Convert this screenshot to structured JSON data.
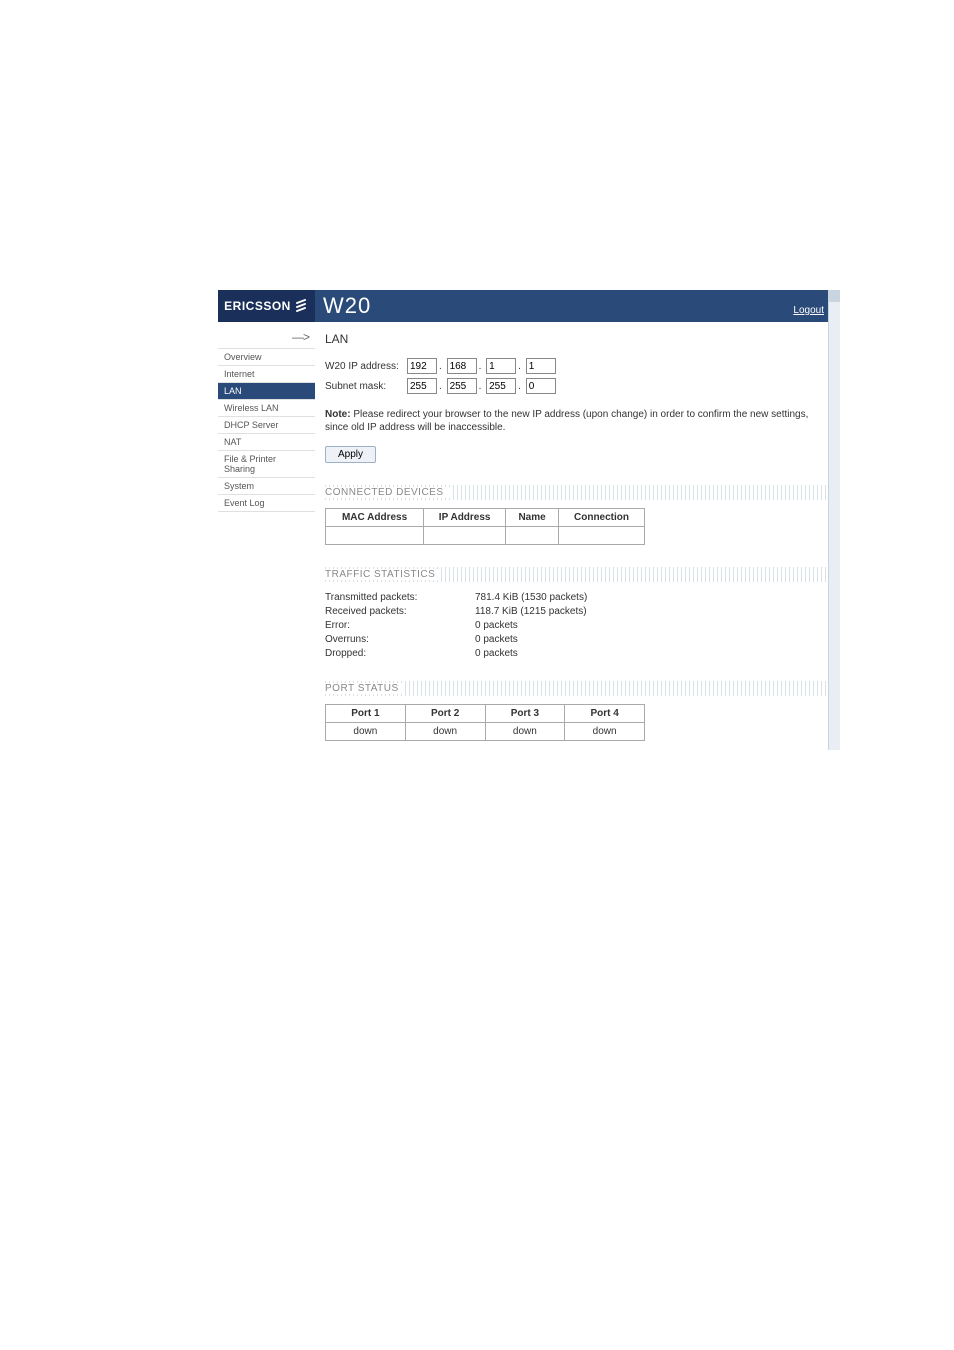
{
  "brand": "ERICSSON",
  "product_title": "W20",
  "logout": "Logout",
  "arrow": "—>",
  "nav": [
    {
      "label": "Overview",
      "active": false
    },
    {
      "label": "Internet",
      "active": false
    },
    {
      "label": "LAN",
      "active": true
    },
    {
      "label": "Wireless LAN",
      "active": false
    },
    {
      "label": "DHCP Server",
      "active": false
    },
    {
      "label": "NAT",
      "active": false
    },
    {
      "label": "File & Printer Sharing",
      "active": false
    },
    {
      "label": "System",
      "active": false
    },
    {
      "label": "Event Log",
      "active": false
    }
  ],
  "page_heading": "LAN",
  "ip_field": {
    "label": "W20 IP address:",
    "o1": "192",
    "o2": "168",
    "o3": "1",
    "o4": "1"
  },
  "subnet_field": {
    "label": "Subnet mask:",
    "o1": "255",
    "o2": "255",
    "o3": "255",
    "o4": "0"
  },
  "note_bold": "Note:",
  "note_text": " Please redirect your browser to the new IP address (upon change) in order to confirm the new settings, since old IP address will be inaccessible.",
  "apply_label": "Apply",
  "connected_header": "CONNECTED DEVICES",
  "connected_columns": [
    "MAC Address",
    "IP Address",
    "Name",
    "Connection"
  ],
  "traffic_header": "TRAFFIC STATISTICS",
  "stats": [
    {
      "label": "Transmitted packets:",
      "value": "781.4 KiB (1530 packets)"
    },
    {
      "label": "Received packets:",
      "value": "118.7 KiB (1215 packets)"
    },
    {
      "label": "Error:",
      "value": "0 packets"
    },
    {
      "label": "Overruns:",
      "value": "0 packets"
    },
    {
      "label": "Dropped:",
      "value": "0 packets"
    }
  ],
  "port_header": "PORT STATUS",
  "ports": {
    "headers": [
      "Port 1",
      "Port 2",
      "Port 3",
      "Port 4"
    ],
    "values": [
      "down",
      "down",
      "down",
      "down"
    ]
  }
}
